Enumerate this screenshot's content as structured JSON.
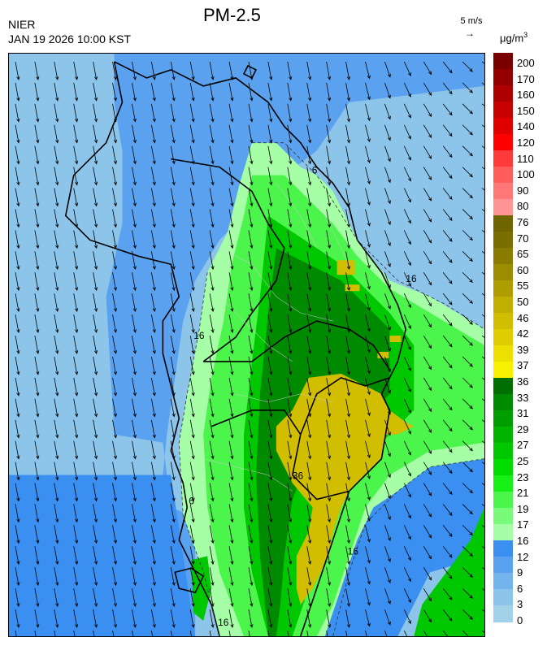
{
  "header": {
    "org": "NIER",
    "datetime": "JAN 19 2026 10:00 KST",
    "title": "PM-2.5",
    "wind_ref_label": "5 m/s",
    "unit_base": "μg/m",
    "unit_exp": "3"
  },
  "legend": {
    "labels": [
      "200",
      "170",
      "160",
      "150",
      "140",
      "120",
      "110",
      "100",
      "90",
      "80",
      "76",
      "70",
      "65",
      "60",
      "55",
      "50",
      "46",
      "42",
      "39",
      "37",
      "36",
      "33",
      "31",
      "29",
      "27",
      "25",
      "23",
      "21",
      "19",
      "17",
      "16",
      "12",
      "9",
      "6",
      "3",
      "0"
    ],
    "colors": [
      "#7a0000",
      "#940000",
      "#ad0000",
      "#c70000",
      "#e00000",
      "#ff0000",
      "#ff3a3a",
      "#ff5c5c",
      "#ff7878",
      "#ff9494",
      "#6e6400",
      "#7a6e00",
      "#8a7c00",
      "#9c8c00",
      "#ae9c00",
      "#c0ae00",
      "#d2be00",
      "#e0cc00",
      "#ece000",
      "#f7f000",
      "#006e00",
      "#008a00",
      "#009e00",
      "#00b400",
      "#00c800",
      "#00dc00",
      "#17f017",
      "#4cf54c",
      "#7afa7a",
      "#a6ffa6",
      "#3b8ff0",
      "#5aa2f0",
      "#74b4ec",
      "#8cc4ea",
      "#a2d2ea"
    ]
  },
  "map": {
    "contour_labels": [
      "6",
      "16",
      "16",
      "16",
      "16",
      "36",
      "6"
    ]
  }
}
